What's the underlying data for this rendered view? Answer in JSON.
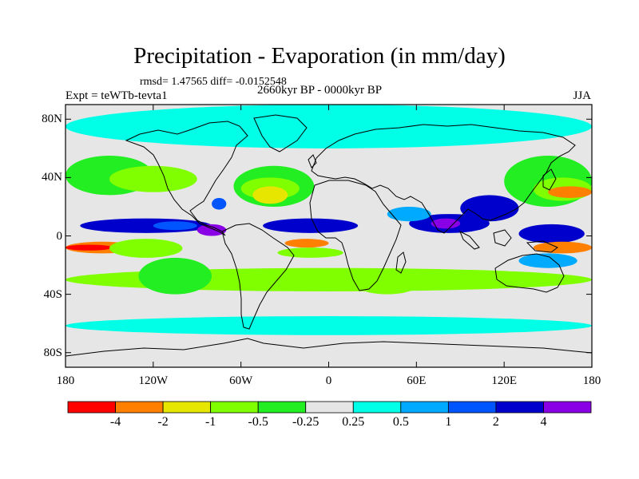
{
  "title": "Precipitation - Evaporation (in mm/day)",
  "stats": "rmsd= 1.47565 diff= -0.0152548",
  "period": "2660kyr BP - 0000kyr BP",
  "experiment": "Expt = teWTb-tevta1",
  "season": "JJA",
  "map": {
    "lat_ticks": [
      {
        "label": "80N",
        "lat": 80
      },
      {
        "label": "40N",
        "lat": 40
      },
      {
        "label": "0",
        "lat": 0
      },
      {
        "label": "40S",
        "lat": -40
      },
      {
        "label": "80S",
        "lat": -80
      }
    ],
    "lon_ticks": [
      {
        "label": "180",
        "lon": -180
      },
      {
        "label": "120W",
        "lon": -120
      },
      {
        "label": "60W",
        "lon": -60
      },
      {
        "label": "0",
        "lon": 0
      },
      {
        "label": "60E",
        "lon": 60
      },
      {
        "label": "120E",
        "lon": 120
      },
      {
        "label": "180",
        "lon": 180
      }
    ],
    "lat_range": [
      -90,
      90
    ],
    "lon_range": [
      -180,
      180
    ]
  },
  "colorbar": {
    "colors": [
      "#ff0000",
      "#ff8000",
      "#e6e600",
      "#80ff00",
      "#22ee22",
      "#e6e6e6",
      "#00ffe6",
      "#00aaff",
      "#0055ff",
      "#0000cc",
      "#8a00e6"
    ],
    "labels": [
      "-4",
      "-2",
      "-1",
      "-0.5",
      "-0.25",
      "0.25",
      "0.5",
      "1",
      "2",
      "4"
    ]
  },
  "bands": [
    {
      "level": 6,
      "lon": [
        -180,
        180
      ],
      "lat": [
        60,
        90
      ]
    },
    {
      "level": 6,
      "lon": [
        -180,
        180
      ],
      "lat": [
        -68,
        -55
      ]
    },
    {
      "level": 4,
      "lon": [
        -180,
        -120
      ],
      "lat": [
        28,
        55
      ]
    },
    {
      "level": 3,
      "lon": [
        -150,
        -90
      ],
      "lat": [
        30,
        48
      ]
    },
    {
      "level": 4,
      "lon": [
        -65,
        -10
      ],
      "lat": [
        20,
        48
      ]
    },
    {
      "level": 3,
      "lon": [
        -60,
        -20
      ],
      "lat": [
        25,
        40
      ]
    },
    {
      "level": 2,
      "lon": [
        -52,
        -28
      ],
      "lat": [
        22,
        34
      ]
    },
    {
      "level": 4,
      "lon": [
        120,
        180
      ],
      "lat": [
        20,
        55
      ]
    },
    {
      "level": 3,
      "lon": [
        140,
        180
      ],
      "lat": [
        24,
        40
      ]
    },
    {
      "level": 1,
      "lon": [
        150,
        180
      ],
      "lat": [
        26,
        34
      ]
    },
    {
      "level": 3,
      "lon": [
        -180,
        180
      ],
      "lat": [
        -38,
        -22
      ]
    },
    {
      "level": 4,
      "lon": [
        -130,
        -80
      ],
      "lat": [
        -40,
        -15
      ]
    },
    {
      "level": 9,
      "lon": [
        -170,
        -80
      ],
      "lat": [
        2,
        12
      ]
    },
    {
      "level": 8,
      "lon": [
        -120,
        -90
      ],
      "lat": [
        4,
        10
      ]
    },
    {
      "level": 1,
      "lon": [
        -180,
        -130
      ],
      "lat": [
        -12,
        -4
      ]
    },
    {
      "level": 0,
      "lon": [
        -180,
        -148
      ],
      "lat": [
        -10,
        -6
      ]
    },
    {
      "level": 3,
      "lon": [
        -150,
        -100
      ],
      "lat": [
        -15,
        -2
      ]
    },
    {
      "level": 9,
      "lon": [
        -45,
        20
      ],
      "lat": [
        2,
        12
      ]
    },
    {
      "level": 9,
      "lon": [
        55,
        110
      ],
      "lat": [
        2,
        15
      ]
    },
    {
      "level": 10,
      "lon": [
        70,
        90
      ],
      "lat": [
        5,
        12
      ]
    },
    {
      "level": 9,
      "lon": [
        90,
        130
      ],
      "lat": [
        10,
        28
      ]
    },
    {
      "level": 1,
      "lon": [
        -30,
        0
      ],
      "lat": [
        -8,
        -2
      ]
    },
    {
      "level": 3,
      "lon": [
        -35,
        10
      ],
      "lat": [
        -15,
        -8
      ]
    },
    {
      "level": 9,
      "lon": [
        130,
        175
      ],
      "lat": [
        -5,
        8
      ]
    },
    {
      "level": 1,
      "lon": [
        140,
        180
      ],
      "lat": [
        -12,
        -4
      ]
    },
    {
      "level": 10,
      "lon": [
        -90,
        -70
      ],
      "lat": [
        0,
        8
      ]
    },
    {
      "level": 8,
      "lon": [
        -80,
        -70
      ],
      "lat": [
        18,
        26
      ]
    },
    {
      "level": 7,
      "lon": [
        40,
        70
      ],
      "lat": [
        10,
        20
      ]
    },
    {
      "level": 3,
      "lon": [
        20,
        60
      ],
      "lat": [
        -40,
        -28
      ]
    },
    {
      "level": 7,
      "lon": [
        130,
        170
      ],
      "lat": [
        -22,
        -12
      ]
    }
  ]
}
